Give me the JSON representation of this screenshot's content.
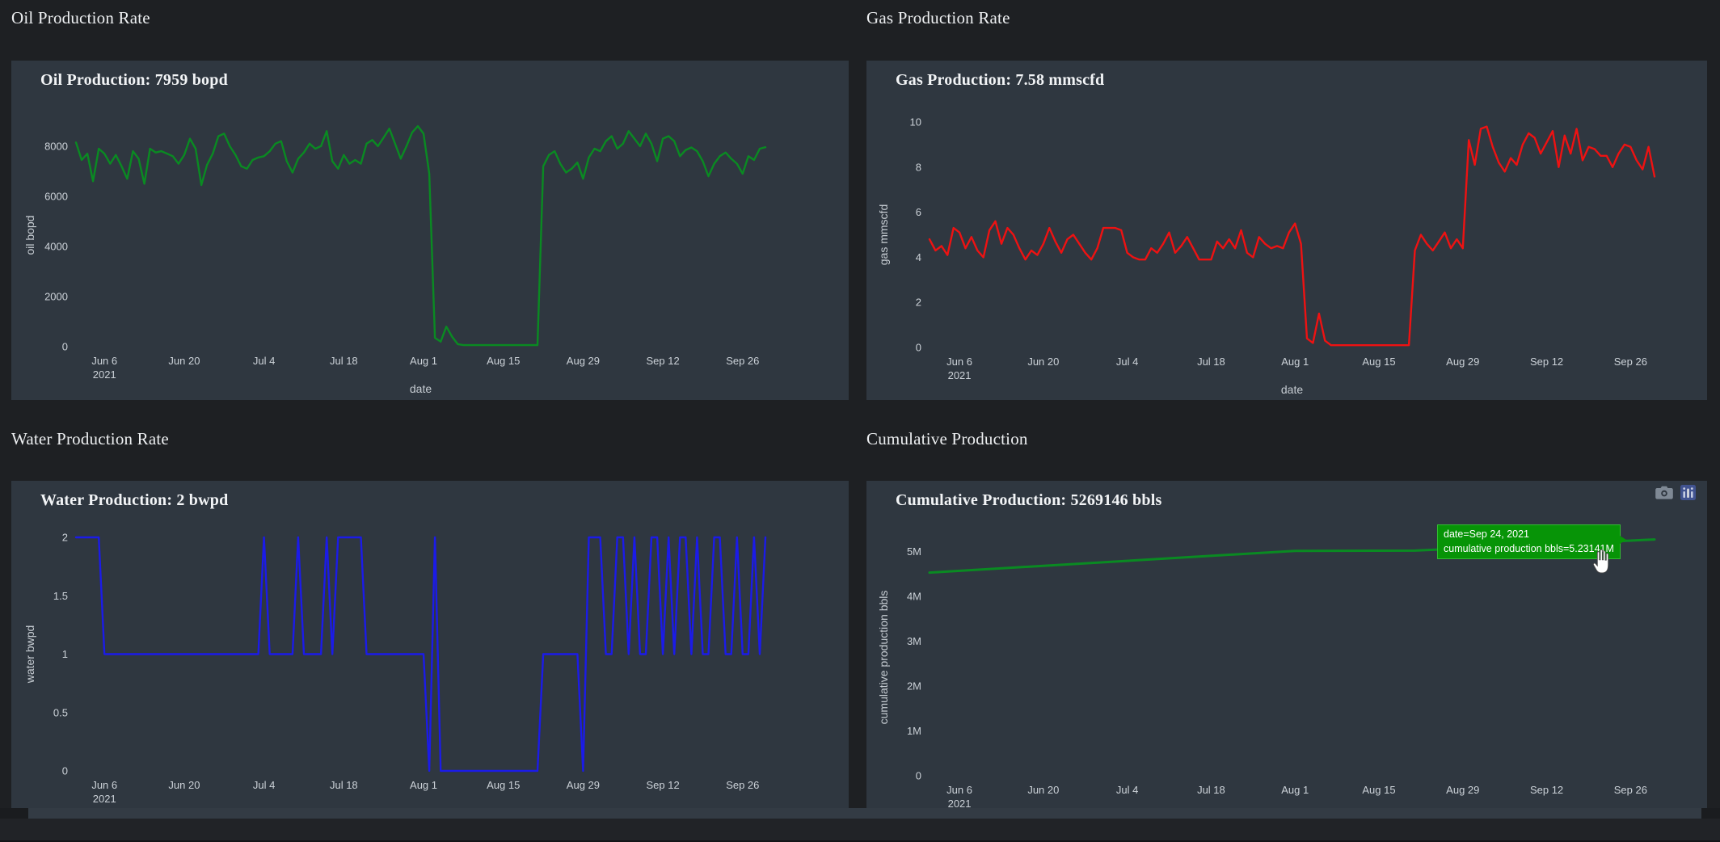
{
  "page": {
    "background": "#1e2023",
    "card_background": "#2f3740"
  },
  "sections": [
    {
      "heading": "Oil Production Rate"
    },
    {
      "heading": "Gas Production Rate"
    },
    {
      "heading": "Water Production Rate"
    },
    {
      "heading": "Cumulative Production"
    }
  ],
  "xticks": [
    {
      "day": 5,
      "label": "Jun 6",
      "sub": "2021"
    },
    {
      "day": 19,
      "label": "Jun 20"
    },
    {
      "day": 33,
      "label": "Jul 4"
    },
    {
      "day": 47,
      "label": "Jul 18"
    },
    {
      "day": 61,
      "label": "Aug 1"
    },
    {
      "day": 75,
      "label": "Aug 15"
    },
    {
      "day": 89,
      "label": "Aug 29"
    },
    {
      "day": 103,
      "label": "Sep 12"
    },
    {
      "day": 117,
      "label": "Sep 26"
    }
  ],
  "chart_data": [
    {
      "type": "line",
      "title": "Oil Production: 7959 bopd",
      "xlabel": "date",
      "ylabel": "oil bopd",
      "x_start": "2021-06-01",
      "x_unit": "day",
      "ylim": [
        0,
        8900
      ],
      "grid": false,
      "color": "#0a8a22",
      "yticks": [
        {
          "v": 0,
          "label": "0"
        },
        {
          "v": 2000,
          "label": "2000"
        },
        {
          "v": 4000,
          "label": "4000"
        },
        {
          "v": 6000,
          "label": "6000"
        },
        {
          "v": 8000,
          "label": "8000"
        }
      ],
      "values": [
        8150,
        7450,
        7700,
        6600,
        7900,
        7700,
        7300,
        7650,
        7200,
        6700,
        7800,
        7500,
        6500,
        7900,
        7750,
        7800,
        7700,
        7600,
        7300,
        7650,
        8300,
        7900,
        6450,
        7250,
        7700,
        8400,
        8500,
        8000,
        7650,
        7200,
        7100,
        7450,
        7550,
        7600,
        7800,
        8100,
        8200,
        7400,
        6950,
        7500,
        7750,
        8100,
        7900,
        8000,
        8600,
        7400,
        7100,
        7650,
        7300,
        7450,
        7300,
        8100,
        8250,
        8000,
        8350,
        8700,
        8100,
        7500,
        8000,
        8550,
        8800,
        8500,
        6900,
        350,
        200,
        800,
        400,
        100,
        60,
        60,
        60,
        60,
        60,
        60,
        60,
        60,
        60,
        60,
        60,
        60,
        60,
        60,
        7200,
        7650,
        7800,
        7300,
        6950,
        7100,
        7350,
        6700,
        7550,
        7900,
        7800,
        8200,
        8400,
        7900,
        8100,
        8600,
        8300,
        8000,
        8500,
        8100,
        7400,
        8300,
        8400,
        8200,
        7600,
        7850,
        7950,
        7800,
        7400,
        6800,
        7300,
        7600,
        7750,
        7500,
        7300,
        6900,
        7600,
        7450,
        7900,
        7959
      ]
    },
    {
      "type": "line",
      "title": "Gas Production: 7.58 mmscfd",
      "xlabel": "date",
      "ylabel": "gas mmscfd",
      "x_start": "2021-06-01",
      "x_unit": "day",
      "ylim": [
        0,
        10
      ],
      "grid": false,
      "color": "#ee1212",
      "yticks": [
        {
          "v": 0,
          "label": "0"
        },
        {
          "v": 2,
          "label": "2"
        },
        {
          "v": 4,
          "label": "4"
        },
        {
          "v": 6,
          "label": "6"
        },
        {
          "v": 8,
          "label": "8"
        },
        {
          "v": 10,
          "label": "10"
        }
      ],
      "values": [
        4.8,
        4.3,
        4.5,
        4.1,
        5.3,
        5.1,
        4.4,
        4.9,
        4.3,
        4.0,
        5.2,
        5.6,
        4.6,
        5.3,
        5.0,
        4.4,
        3.9,
        4.3,
        4.1,
        4.6,
        5.3,
        4.7,
        4.2,
        4.8,
        5.0,
        4.6,
        4.2,
        3.9,
        4.4,
        5.3,
        5.3,
        5.3,
        5.2,
        4.2,
        4.0,
        3.9,
        3.9,
        4.4,
        4.2,
        4.6,
        5.1,
        4.2,
        4.5,
        4.9,
        4.4,
        3.9,
        3.9,
        3.9,
        4.7,
        4.4,
        4.8,
        4.4,
        5.2,
        4.2,
        4.0,
        4.9,
        4.6,
        4.4,
        4.5,
        4.4,
        5.1,
        5.5,
        4.6,
        0.4,
        0.2,
        1.5,
        0.3,
        0.1,
        0.1,
        0.1,
        0.1,
        0.1,
        0.1,
        0.1,
        0.1,
        0.1,
        0.1,
        0.1,
        0.1,
        0.1,
        0.1,
        4.3,
        5.0,
        4.6,
        4.3,
        4.7,
        5.1,
        4.4,
        4.8,
        4.4,
        9.2,
        8.1,
        9.7,
        9.8,
        8.9,
        8.2,
        7.8,
        8.4,
        8.1,
        9.0,
        9.5,
        9.3,
        8.6,
        9.1,
        9.6,
        8.0,
        9.4,
        8.6,
        9.7,
        8.3,
        8.9,
        8.8,
        8.5,
        8.5,
        8.0,
        8.6,
        9.0,
        8.9,
        8.3,
        7.9,
        8.9,
        7.58
      ]
    },
    {
      "type": "line",
      "title": "Water Production: 2 bwpd",
      "xlabel": "date",
      "ylabel": "water bwpd",
      "x_start": "2021-06-01",
      "x_unit": "day",
      "ylim": [
        0,
        2
      ],
      "grid": false,
      "color": "#1b1be8",
      "yticks": [
        {
          "v": 0,
          "label": "0"
        },
        {
          "v": 0.5,
          "label": "0.5"
        },
        {
          "v": 1,
          "label": "1"
        },
        {
          "v": 1.5,
          "label": "1.5"
        },
        {
          "v": 2,
          "label": "2"
        }
      ],
      "values": [
        2,
        2,
        2,
        2,
        2,
        1,
        1,
        1,
        1,
        1,
        1,
        1,
        1,
        1,
        1,
        1,
        1,
        1,
        1,
        1,
        1,
        1,
        1,
        1,
        1,
        1,
        1,
        1,
        1,
        1,
        1,
        1,
        1,
        2,
        1,
        1,
        1,
        1,
        1,
        2,
        1,
        1,
        1,
        1,
        2,
        1,
        2,
        2,
        2,
        2,
        2,
        1,
        1,
        1,
        1,
        1,
        1,
        1,
        1,
        1,
        1,
        1,
        0,
        2,
        0,
        0,
        0,
        0,
        0,
        0,
        0,
        0,
        0,
        0,
        0,
        0,
        0,
        0,
        0,
        0,
        0,
        0,
        1,
        1,
        1,
        1,
        1,
        1,
        1,
        0,
        2,
        2,
        2,
        1,
        1,
        2,
        2,
        1,
        2,
        1,
        1,
        2,
        2,
        1,
        2,
        1,
        2,
        2,
        1,
        2,
        1,
        1,
        2,
        2,
        1,
        1,
        2,
        1,
        1,
        2,
        1,
        2
      ]
    },
    {
      "type": "line",
      "title": "Cumulative Production: 5269146 bbls",
      "xlabel": "date",
      "ylabel": "cumulative production bbls",
      "x_start": "2021-06-01",
      "x_unit": "day",
      "ylim": [
        0,
        5280000
      ],
      "grid": false,
      "color": "#0a8a22",
      "line_width": 3,
      "yticks": [
        {
          "v": 0,
          "label": "0"
        },
        {
          "v": 1000000,
          "label": "1M"
        },
        {
          "v": 2000000,
          "label": "2M"
        },
        {
          "v": 3000000,
          "label": "3M"
        },
        {
          "v": 4000000,
          "label": "4M"
        },
        {
          "v": 5000000,
          "label": "5M"
        }
      ],
      "keypoints": [
        [
          0,
          4530000
        ],
        [
          61,
          5015000
        ],
        [
          81,
          5020000
        ],
        [
          115,
          5231410
        ],
        [
          121,
          5269146
        ]
      ]
    }
  ],
  "tooltip": {
    "line1": "date=Sep 24, 2021",
    "line2": "cumulative production bbls=5.23141M",
    "bg": "#079407",
    "border": "#33bb33"
  },
  "modebar": {
    "icons": [
      "camera",
      "plotly-logo"
    ]
  }
}
